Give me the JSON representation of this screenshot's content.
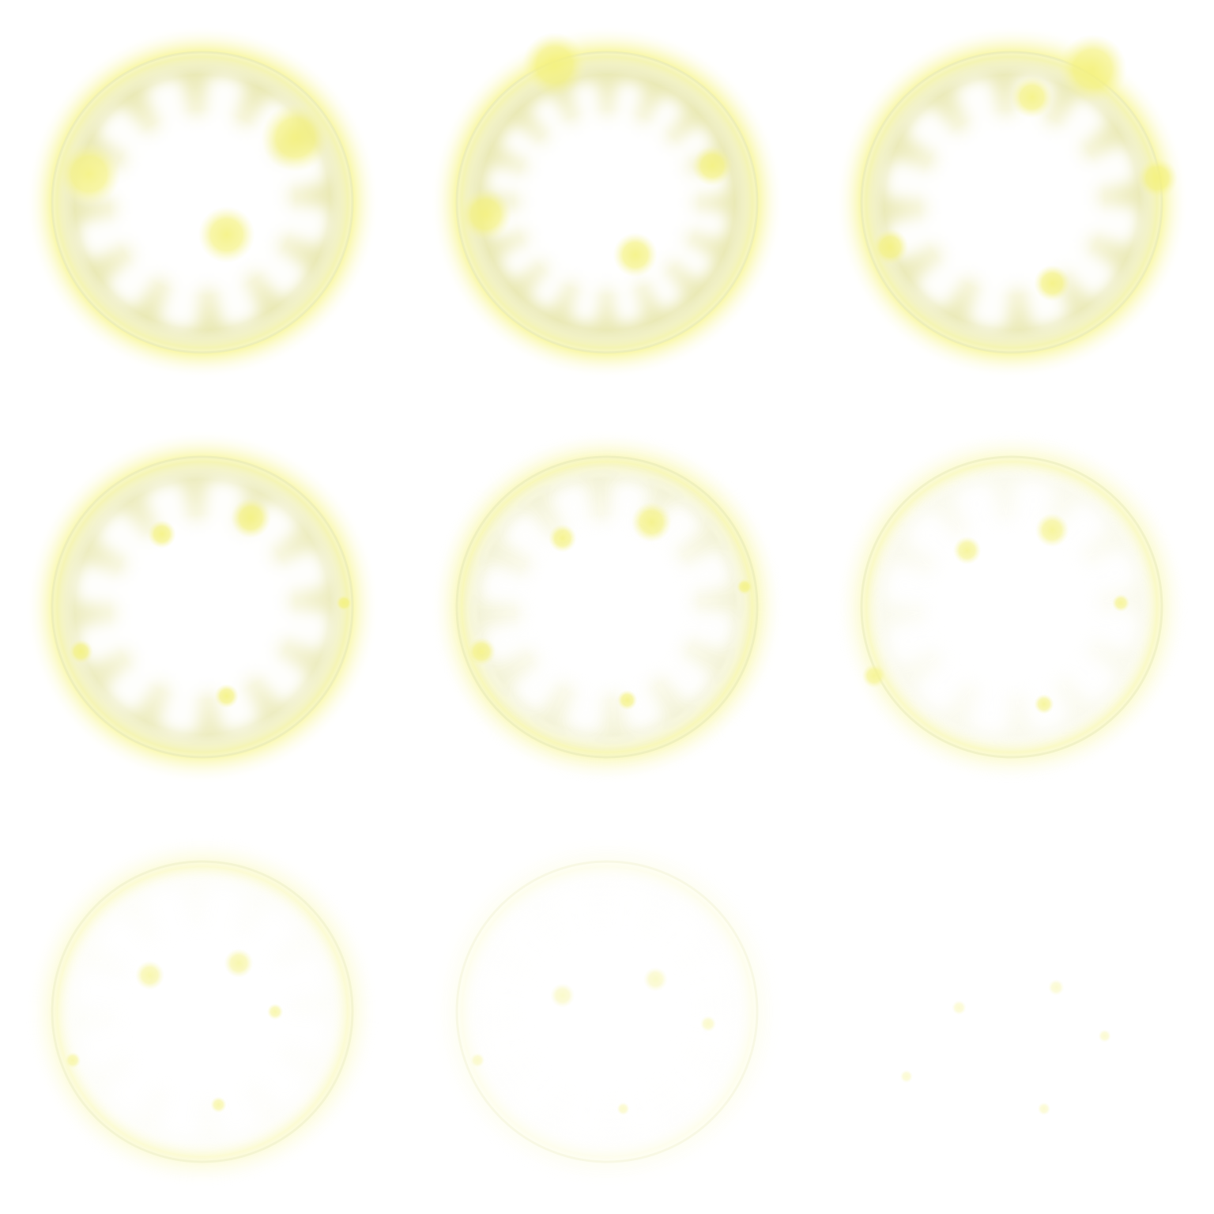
{
  "sprite_sheet": {
    "columns": 3,
    "rows": 3,
    "frame_count": 9,
    "colors": {
      "background": "#ffffff",
      "glow": "#f4f15a",
      "ring": "#ecebb2",
      "rim": "#f5f7d6",
      "orb": "#f3f07a"
    },
    "frames": [
      {
        "name": "burst-frame-1",
        "opacity": 1.0,
        "ring_strength": 1.0,
        "glow_strength": 1.0,
        "orbs": [
          [
            0.22,
            0.43,
            0.078
          ],
          [
            0.73,
            0.34,
            0.085
          ],
          [
            0.56,
            0.58,
            0.07
          ]
        ]
      },
      {
        "name": "burst-frame-2",
        "opacity": 1.0,
        "ring_strength": 1.0,
        "ring_bursty": true,
        "glow_strength": 1.0,
        "orbs": [
          [
            0.37,
            0.16,
            0.08
          ],
          [
            0.2,
            0.53,
            0.065
          ],
          [
            0.76,
            0.41,
            0.05
          ],
          [
            0.57,
            0.63,
            0.055
          ]
        ]
      },
      {
        "name": "burst-frame-3",
        "opacity": 1.0,
        "ring_strength": 0.95,
        "glow_strength": 0.95,
        "orbs": [
          [
            0.55,
            0.24,
            0.052
          ],
          [
            0.7,
            0.17,
            0.085
          ],
          [
            0.86,
            0.44,
            0.05
          ],
          [
            0.2,
            0.61,
            0.045
          ],
          [
            0.6,
            0.7,
            0.045
          ]
        ]
      },
      {
        "name": "burst-frame-4",
        "opacity": 1.0,
        "ring_strength": 0.85,
        "glow_strength": 0.85,
        "orbs": [
          [
            0.4,
            0.32,
            0.035
          ],
          [
            0.62,
            0.28,
            0.05
          ],
          [
            0.85,
            0.49,
            0.02
          ],
          [
            0.2,
            0.61,
            0.03
          ],
          [
            0.56,
            0.72,
            0.03
          ]
        ]
      },
      {
        "name": "burst-frame-5",
        "opacity": 0.95,
        "ring_strength": 0.55,
        "glow_strength": 0.7,
        "orbs": [
          [
            0.39,
            0.33,
            0.035
          ],
          [
            0.61,
            0.29,
            0.05
          ],
          [
            0.84,
            0.45,
            0.02
          ],
          [
            0.19,
            0.61,
            0.035
          ],
          [
            0.55,
            0.73,
            0.025
          ]
        ]
      },
      {
        "name": "burst-frame-6",
        "opacity": 0.85,
        "ring_strength": 0.25,
        "glow_strength": 0.55,
        "orbs": [
          [
            0.39,
            0.36,
            0.035
          ],
          [
            0.6,
            0.31,
            0.042
          ],
          [
            0.77,
            0.49,
            0.022
          ],
          [
            0.16,
            0.67,
            0.03
          ],
          [
            0.58,
            0.74,
            0.025
          ]
        ]
      },
      {
        "name": "burst-frame-7",
        "opacity": 0.7,
        "ring_strength": 0.1,
        "glow_strength": 0.5,
        "orbs": [
          [
            0.37,
            0.41,
            0.036
          ],
          [
            0.59,
            0.38,
            0.036
          ],
          [
            0.68,
            0.5,
            0.02
          ],
          [
            0.18,
            0.62,
            0.02
          ],
          [
            0.54,
            0.73,
            0.02
          ]
        ]
      },
      {
        "name": "burst-frame-8",
        "opacity": 0.45,
        "ring_strength": 0.05,
        "glow_strength": 0.3,
        "orbs": [
          [
            0.39,
            0.46,
            0.03
          ],
          [
            0.62,
            0.42,
            0.03
          ],
          [
            0.75,
            0.53,
            0.02
          ],
          [
            0.18,
            0.62,
            0.018
          ],
          [
            0.54,
            0.74,
            0.016
          ]
        ]
      },
      {
        "name": "burst-frame-9",
        "opacity": 0.4,
        "ring_strength": 0.0,
        "glow_strength": 0.0,
        "show_rim": false,
        "orbs": [
          [
            0.37,
            0.49,
            0.018
          ],
          [
            0.61,
            0.44,
            0.02
          ],
          [
            0.73,
            0.56,
            0.016
          ],
          [
            0.24,
            0.66,
            0.016
          ],
          [
            0.58,
            0.74,
            0.016
          ]
        ]
      }
    ]
  }
}
